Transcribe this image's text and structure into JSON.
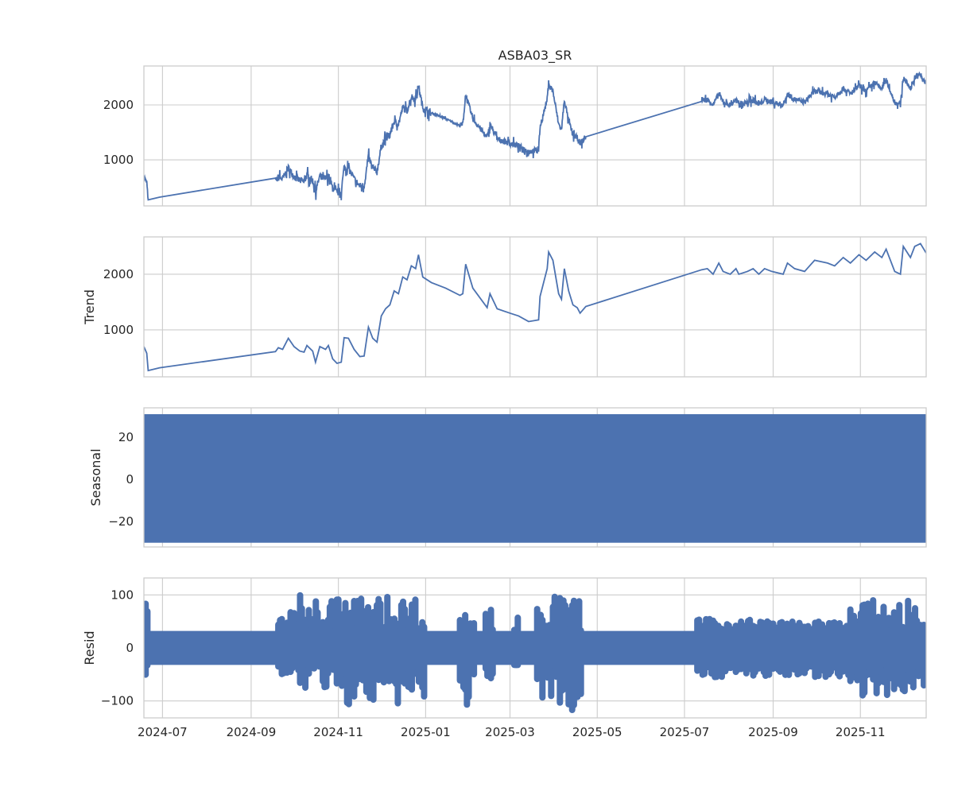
{
  "chart_data": {
    "type": "line",
    "title": "ASBA03_SR",
    "color": "#4c72b0",
    "grid": true,
    "xlim": [
      "2024-06-18",
      "2025-12-17"
    ],
    "xticks": [
      "2024-07-01",
      "2024-09-01",
      "2024-11-01",
      "2025-01-01",
      "2025-03-01",
      "2025-05-01",
      "2025-07-01",
      "2025-09-01",
      "2025-11-01"
    ],
    "xtick_labels": [
      "2024-07",
      "2024-09",
      "2024-11",
      "2025-01",
      "2025-03",
      "2025-05",
      "2025-07",
      "2025-09",
      "2025-11"
    ],
    "panels": [
      {
        "name": "observed",
        "ylabel": "",
        "ylim": [
          160,
          2710
        ],
        "yticks": [
          1000,
          2000
        ],
        "ytick_labels": [
          "1000",
          "2000"
        ]
      },
      {
        "name": "trend",
        "ylabel": "Trend",
        "ylim": [
          157,
          2670
        ],
        "yticks": [
          1000,
          2000
        ],
        "ytick_labels": [
          "1000",
          "2000"
        ]
      },
      {
        "name": "seasonal",
        "ylabel": "Seasonal",
        "ylim": [
          -32,
          34
        ],
        "yticks": [
          -20,
          0,
          20
        ],
        "ytick_labels": [
          "−20",
          "0",
          "20"
        ]
      },
      {
        "name": "resid",
        "ylabel": "Resid",
        "ylim": [
          -132,
          132
        ],
        "yticks": [
          -100,
          0,
          100
        ],
        "ytick_labels": [
          "−100",
          "0",
          "100"
        ]
      }
    ],
    "trend": [
      [
        "2024-06-18",
        700
      ],
      [
        "2024-06-20",
        580
      ],
      [
        "2024-06-21",
        270
      ],
      [
        "2024-06-29",
        320
      ],
      [
        "2024-09-18",
        610
      ],
      [
        "2024-09-20",
        680
      ],
      [
        "2024-09-23",
        650
      ],
      [
        "2024-09-27",
        850
      ],
      [
        "2024-10-01",
        700
      ],
      [
        "2024-10-05",
        620
      ],
      [
        "2024-10-08",
        600
      ],
      [
        "2024-10-10",
        720
      ],
      [
        "2024-10-14",
        620
      ],
      [
        "2024-10-16",
        420
      ],
      [
        "2024-10-19",
        700
      ],
      [
        "2024-10-23",
        650
      ],
      [
        "2024-10-25",
        720
      ],
      [
        "2024-10-28",
        480
      ],
      [
        "2024-10-31",
        400
      ],
      [
        "2024-11-03",
        420
      ],
      [
        "2024-11-05",
        860
      ],
      [
        "2024-11-08",
        850
      ],
      [
        "2024-11-12",
        650
      ],
      [
        "2024-11-16",
        520
      ],
      [
        "2024-11-19",
        530
      ],
      [
        "2024-11-22",
        1050
      ],
      [
        "2024-11-25",
        850
      ],
      [
        "2024-11-28",
        780
      ],
      [
        "2024-12-01",
        1250
      ],
      [
        "2024-12-04",
        1380
      ],
      [
        "2024-12-07",
        1450
      ],
      [
        "2024-12-10",
        1700
      ],
      [
        "2024-12-13",
        1650
      ],
      [
        "2024-12-16",
        1950
      ],
      [
        "2024-12-19",
        1900
      ],
      [
        "2024-12-22",
        2150
      ],
      [
        "2024-12-25",
        2100
      ],
      [
        "2024-12-27",
        2350
      ],
      [
        "2024-12-30",
        1950
      ],
      [
        "2025-01-05",
        1850
      ],
      [
        "2025-01-15",
        1750
      ],
      [
        "2025-01-25",
        1620
      ],
      [
        "2025-01-27",
        1650
      ],
      [
        "2025-01-29",
        2180
      ],
      [
        "2025-02-03",
        1750
      ],
      [
        "2025-02-13",
        1400
      ],
      [
        "2025-02-15",
        1650
      ],
      [
        "2025-02-20",
        1380
      ],
      [
        "2025-03-01",
        1300
      ],
      [
        "2025-03-07",
        1250
      ],
      [
        "2025-03-14",
        1150
      ],
      [
        "2025-03-21",
        1180
      ],
      [
        "2025-03-22",
        1600
      ],
      [
        "2025-03-27",
        2100
      ],
      [
        "2025-03-28",
        2400
      ],
      [
        "2025-03-31",
        2250
      ],
      [
        "2025-04-04",
        1650
      ],
      [
        "2025-04-06",
        1550
      ],
      [
        "2025-04-08",
        2100
      ],
      [
        "2025-04-11",
        1700
      ],
      [
        "2025-04-14",
        1450
      ],
      [
        "2025-04-17",
        1400
      ],
      [
        "2025-04-19",
        1300
      ],
      [
        "2025-04-23",
        1420
      ],
      [
        "2025-07-13",
        2080
      ],
      [
        "2025-07-17",
        2100
      ],
      [
        "2025-07-21",
        2000
      ],
      [
        "2025-07-25",
        2200
      ],
      [
        "2025-07-28",
        2050
      ],
      [
        "2025-08-02",
        2000
      ],
      [
        "2025-08-06",
        2100
      ],
      [
        "2025-08-08",
        2000
      ],
      [
        "2025-08-14",
        2050
      ],
      [
        "2025-08-18",
        2100
      ],
      [
        "2025-08-22",
        2000
      ],
      [
        "2025-08-26",
        2100
      ],
      [
        "2025-08-31",
        2050
      ],
      [
        "2025-09-08",
        2000
      ],
      [
        "2025-09-11",
        2200
      ],
      [
        "2025-09-16",
        2100
      ],
      [
        "2025-09-23",
        2050
      ],
      [
        "2025-09-30",
        2250
      ],
      [
        "2025-10-09",
        2200
      ],
      [
        "2025-10-14",
        2150
      ],
      [
        "2025-10-20",
        2300
      ],
      [
        "2025-10-25",
        2200
      ],
      [
        "2025-10-31",
        2350
      ],
      [
        "2025-11-05",
        2250
      ],
      [
        "2025-11-11",
        2400
      ],
      [
        "2025-11-16",
        2300
      ],
      [
        "2025-11-19",
        2450
      ],
      [
        "2025-11-22",
        2250
      ],
      [
        "2025-11-25",
        2050
      ],
      [
        "2025-11-29",
        2000
      ],
      [
        "2025-12-01",
        2500
      ],
      [
        "2025-12-06",
        2300
      ],
      [
        "2025-12-09",
        2500
      ],
      [
        "2025-12-13",
        2550
      ],
      [
        "2025-12-17",
        2380
      ]
    ],
    "observed_noise": [
      [
        "2024-06-18",
        "2024-06-21",
        60
      ],
      [
        "2024-09-18",
        "2024-12-31",
        110
      ],
      [
        "2025-01-01",
        "2025-01-20",
        25
      ],
      [
        "2025-01-20",
        "2025-04-23",
        90
      ],
      [
        "2025-07-13",
        "2025-12-17",
        80
      ]
    ],
    "seasonal_range": [
      -30,
      31
    ],
    "resid_base_range": [
      -32,
      32
    ],
    "resid_envelope": [
      [
        "2024-06-18",
        "2024-06-21",
        120,
        -75
      ],
      [
        "2024-09-20",
        "2024-10-02",
        85,
        -50
      ],
      [
        "2024-10-04",
        "2024-11-01",
        100,
        -85
      ],
      [
        "2024-11-01",
        "2024-12-31",
        100,
        -110
      ],
      [
        "2025-01-25",
        "2025-02-05",
        65,
        -110
      ],
      [
        "2025-02-12",
        "2025-02-18",
        90,
        -60
      ],
      [
        "2025-03-04",
        "2025-03-07",
        60,
        -50
      ],
      [
        "2025-03-20",
        "2025-04-20",
        100,
        -120
      ],
      [
        "2025-07-10",
        "2025-08-31",
        55,
        -55
      ],
      [
        "2025-09-01",
        "2025-10-24",
        50,
        -55
      ],
      [
        "2025-10-25",
        "2025-12-17",
        90,
        -90
      ]
    ]
  }
}
